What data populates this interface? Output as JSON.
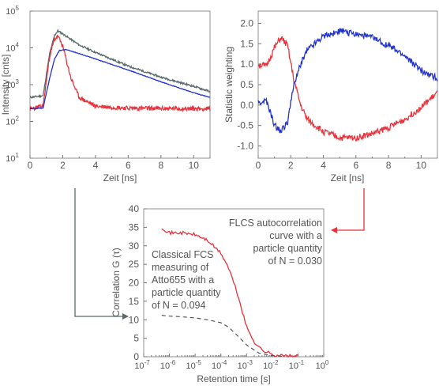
{
  "colors": {
    "red": "#e8323c",
    "blue": "#2233cc",
    "gray": "#5a6a6a",
    "dash": "#555555",
    "axis": "#777777",
    "text": "#555555"
  },
  "charts": [
    {
      "id": "decay",
      "type": "line",
      "xlabel": "Zeit [ns]",
      "ylabel": "Intensity [cnts]",
      "xlim": [
        0,
        11
      ],
      "ylim_log10": [
        1,
        5
      ],
      "xticks": [
        "0",
        "2",
        "4",
        "6",
        "8",
        "10"
      ],
      "yticks": [
        {
          "base": "10",
          "exp": "1"
        },
        {
          "base": "10",
          "exp": "2"
        },
        {
          "base": "10",
          "exp": "3"
        },
        {
          "base": "10",
          "exp": "4"
        },
        {
          "base": "10",
          "exp": "5"
        }
      ]
    },
    {
      "id": "weighting",
      "type": "line",
      "xlabel": "Zeit [ns]",
      "ylabel": "Statistic weighting",
      "xlim": [
        0,
        11
      ],
      "ylim": [
        -1.3,
        2.3
      ],
      "xticks": [
        "0",
        "2",
        "4",
        "6",
        "8",
        "10"
      ],
      "yticks": [
        "2.0",
        "1.5",
        "1.0",
        "0.5",
        "0.0",
        "-0.5",
        "-1.0"
      ]
    },
    {
      "id": "correlation",
      "type": "line",
      "xlabel": "Retention time [s]",
      "ylabel": "Correlation G (τ)",
      "xlim_log10": [
        -7,
        0
      ],
      "ylim": [
        0,
        40
      ],
      "xticks": [
        {
          "base": "10",
          "exp": "-7"
        },
        {
          "base": "10",
          "exp": "-6"
        },
        {
          "base": "10",
          "exp": "-5"
        },
        {
          "base": "10",
          "exp": "-4"
        },
        {
          "base": "10",
          "exp": "-3"
        },
        {
          "base": "10",
          "exp": "-2"
        },
        {
          "base": "10",
          "exp": "-1"
        },
        {
          "base": "10",
          "exp": "0"
        }
      ],
      "yticks": [
        "40",
        "35",
        "30",
        "25",
        "20",
        "15",
        "10",
        "5",
        "0"
      ]
    }
  ],
  "annotations": {
    "flcs": [
      "FLCS autocorrelation",
      "curve with a",
      "particle quantity",
      "of N = 0.030"
    ],
    "classical": [
      "Classical FCS",
      "measuring of",
      "Atto655 with a",
      "particle quantity",
      "of N = 0.094"
    ]
  },
  "chart_data": [
    {
      "type": "line",
      "xlabel": "Zeit [ns]",
      "ylabel": "Intensity [cnts]",
      "y_scale": "log",
      "xlim": [
        0,
        11
      ],
      "ylim": [
        10,
        100000
      ],
      "series": [
        {
          "color": "#5a6a6a",
          "x": [
            0,
            0.8,
            1.2,
            1.5,
            1.7,
            2.0,
            3,
            4,
            6,
            8,
            10,
            11
          ],
          "y": [
            450,
            500,
            7000,
            22000,
            29000,
            24000,
            12000,
            7500,
            3200,
            1600,
            900,
            650
          ]
        },
        {
          "color": "#e8323c",
          "x": [
            0,
            0.8,
            1.2,
            1.5,
            1.7,
            2.0,
            2.5,
            3,
            4,
            6,
            8,
            11
          ],
          "y": [
            220,
            260,
            6000,
            17000,
            21000,
            11000,
            1500,
            450,
            260,
            230,
            225,
            220
          ]
        },
        {
          "color": "#2233cc",
          "x": [
            0,
            0.8,
            1.2,
            1.5,
            1.8,
            2.2,
            3,
            4,
            6,
            8,
            10,
            11
          ],
          "y": [
            220,
            230,
            1500,
            5000,
            8500,
            9000,
            7000,
            5000,
            2500,
            1200,
            600,
            450
          ]
        }
      ]
    },
    {
      "type": "line",
      "xlabel": "Zeit [ns]",
      "ylabel": "Statistic weighting",
      "xlim": [
        0,
        11
      ],
      "ylim": [
        -1.3,
        2.3
      ],
      "series": [
        {
          "color": "#e8323c",
          "x": [
            0,
            0.5,
            1.0,
            1.4,
            1.8,
            2.2,
            2.6,
            3,
            4,
            5,
            6,
            7,
            8,
            9,
            10,
            11
          ],
          "y": [
            1.0,
            0.95,
            1.4,
            1.65,
            1.45,
            0.6,
            0.0,
            -0.35,
            -0.65,
            -0.8,
            -0.8,
            -0.7,
            -0.55,
            -0.35,
            -0.05,
            0.3
          ]
        },
        {
          "color": "#2233cc",
          "x": [
            0,
            0.5,
            1.0,
            1.4,
            1.8,
            2.2,
            2.6,
            3,
            4,
            5,
            6,
            7,
            8,
            9,
            10,
            11
          ],
          "y": [
            0.05,
            0.1,
            -0.5,
            -0.65,
            -0.4,
            0.5,
            1.0,
            1.35,
            1.7,
            1.8,
            1.75,
            1.65,
            1.45,
            1.2,
            0.85,
            0.65
          ]
        }
      ]
    },
    {
      "type": "line",
      "xlabel": "Retention time [s]",
      "ylabel": "Correlation G (τ)",
      "x_scale": "log",
      "xlim": [
        1e-07,
        1
      ],
      "ylim": [
        0,
        40
      ],
      "series": [
        {
          "color": "#e8323c",
          "x": [
            5e-07,
            1e-06,
            3e-06,
            1e-05,
            3e-05,
            0.0001,
            0.0002,
            0.0004,
            0.0007,
            0.001,
            0.002,
            0.004,
            0.01,
            0.03,
            0.1
          ],
          "y": [
            35,
            33.5,
            33.5,
            33,
            31.5,
            28,
            24,
            18,
            12,
            8,
            4,
            1.8,
            0.6,
            0.2,
            0.1
          ]
        },
        {
          "color": "#555555",
          "dashed": true,
          "x": [
            5e-07,
            1e-06,
            3e-06,
            1e-05,
            3e-05,
            0.0001,
            0.0002,
            0.0004,
            0.001,
            0.003,
            0.01,
            0.03
          ],
          "y": [
            11.2,
            11.0,
            10.8,
            10.5,
            10.0,
            9.2,
            8.0,
            6.0,
            3.2,
            1.0,
            0.3,
            0.1
          ]
        }
      ]
    }
  ]
}
